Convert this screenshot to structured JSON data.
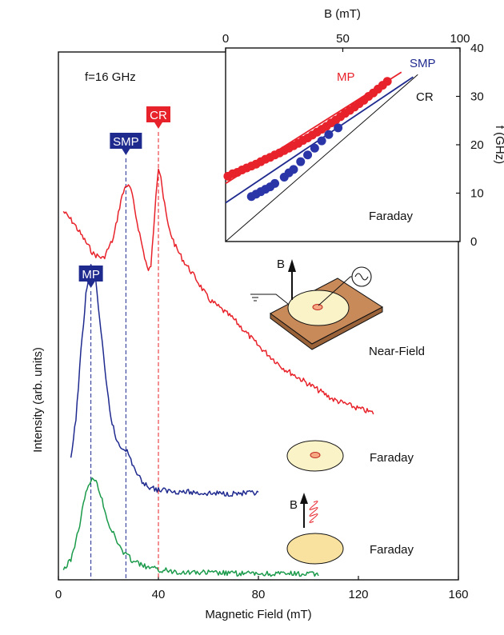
{
  "colors": {
    "red": "#e8222a",
    "blue": "#1f2a8f",
    "green": "#1a9a4a",
    "black": "#111111",
    "dot_red": "#e8222a",
    "dot_blue": "#2a35a8",
    "plate": "#c98a5a",
    "disk": "#fbf3c8"
  },
  "chart_data": [
    {
      "type": "line",
      "annotation_freq": "f=16 GHz",
      "xlabel": "Magnetic Field (mT)",
      "ylabel": "Intensity (arb. units)",
      "xlim": [
        0,
        160
      ],
      "x_ticks": [
        0,
        40,
        80,
        120,
        160
      ],
      "peak_markers": [
        {
          "label": "SMP",
          "field": 27,
          "color": "blue"
        },
        {
          "label": "CR",
          "field": 40,
          "color": "red"
        },
        {
          "label": "MP",
          "field": 13,
          "color": "blue"
        }
      ],
      "series": [
        {
          "name": "Near-Field",
          "color": "red",
          "x": [
            2,
            6,
            10,
            14,
            18,
            22,
            25,
            27,
            29,
            31,
            34,
            36,
            37,
            38,
            39,
            40,
            41,
            42,
            44,
            47,
            50,
            55,
            60,
            70,
            80,
            90,
            100,
            110,
            120,
            126
          ],
          "y": [
            0.52,
            0.47,
            0.4,
            0.33,
            0.31,
            0.4,
            0.57,
            0.64,
            0.62,
            0.5,
            0.34,
            0.25,
            0.28,
            0.42,
            0.6,
            0.72,
            0.68,
            0.58,
            0.45,
            0.36,
            0.3,
            0.22,
            0.13,
            0.04,
            -0.08,
            -0.18,
            -0.25,
            -0.32,
            -0.36,
            -0.38
          ],
          "label_text": "Near-Field"
        },
        {
          "name": "Faraday (ring)",
          "color": "blue",
          "x": [
            5,
            7,
            9,
            11,
            13,
            15,
            17,
            19,
            21,
            23,
            25,
            27,
            29,
            32,
            35,
            40,
            50,
            60,
            70,
            80
          ],
          "y": [
            0.2,
            0.45,
            0.85,
            1.2,
            1.38,
            1.28,
            0.98,
            0.68,
            0.46,
            0.33,
            0.28,
            0.27,
            0.2,
            0.1,
            0.05,
            0.02,
            0.01,
            0.0,
            0.0,
            0.0
          ],
          "label_text": "Faraday"
        },
        {
          "name": "Faraday (disk)",
          "color": "green",
          "x": [
            2,
            5,
            8,
            10,
            12,
            14,
            16,
            18,
            20,
            23,
            26,
            30,
            35,
            40,
            50,
            60,
            70,
            80,
            90,
            104
          ],
          "y": [
            0.03,
            0.1,
            0.3,
            0.48,
            0.62,
            0.66,
            0.6,
            0.48,
            0.35,
            0.24,
            0.15,
            0.09,
            0.05,
            0.03,
            0.015,
            0.01,
            0.005,
            0.003,
            0.002,
            0.0
          ],
          "label_text": "Faraday"
        }
      ],
      "schematic_labels": {
        "B": "B"
      }
    },
    {
      "type": "scatter",
      "xlabel": "B (mT)",
      "ylabel": "f (GHz)",
      "xlim": [
        0,
        100
      ],
      "ylim": [
        0,
        40
      ],
      "x_ticks": [
        0,
        50,
        100
      ],
      "y_ticks": [
        0,
        10,
        20,
        30,
        40
      ],
      "annotation": "Faraday",
      "series": [
        {
          "name": "MP",
          "color": "red",
          "points": [
            [
              1,
              13.5
            ],
            [
              3,
              14
            ],
            [
              5,
              14.3
            ],
            [
              7,
              14.8
            ],
            [
              9,
              15.2
            ],
            [
              11,
              15.6
            ],
            [
              13,
              16
            ],
            [
              15,
              16.5
            ],
            [
              17,
              17
            ],
            [
              19,
              17.4
            ],
            [
              21,
              17.9
            ],
            [
              23,
              18.3
            ],
            [
              25,
              18.8
            ],
            [
              27,
              19.3
            ],
            [
              29,
              19.8
            ],
            [
              31,
              20.3
            ],
            [
              33,
              20.9
            ],
            [
              35,
              21.4
            ],
            [
              37,
              22
            ],
            [
              39,
              22.6
            ],
            [
              41,
              23.2
            ],
            [
              43,
              23.8
            ],
            [
              45,
              24.5
            ],
            [
              47,
              25.1
            ],
            [
              49,
              25.8
            ],
            [
              51,
              26.5
            ],
            [
              53,
              27.1
            ],
            [
              55,
              27.8
            ],
            [
              57,
              28.5
            ],
            [
              59,
              29.2
            ],
            [
              61,
              30
            ],
            [
              63,
              30.7
            ],
            [
              65,
              31.5
            ],
            [
              67,
              32.3
            ],
            [
              69,
              33.1
            ]
          ],
          "fit": [
            [
              0,
              12
            ],
            [
              75,
              35
            ]
          ]
        },
        {
          "name": "SMP",
          "color": "blue",
          "points": [
            [
              11,
              9.3
            ],
            [
              13,
              9.8
            ],
            [
              15,
              10.3
            ],
            [
              17,
              10.8
            ],
            [
              19,
              11.3
            ],
            [
              21,
              12
            ],
            [
              25,
              13.3
            ],
            [
              27,
              14.2
            ],
            [
              29,
              14.9
            ],
            [
              32,
              16.5
            ],
            [
              35,
              17.9
            ],
            [
              38,
              19.3
            ],
            [
              41,
              20.8
            ],
            [
              44,
              22.1
            ],
            [
              48,
              23.5
            ]
          ],
          "fit": [
            [
              0,
              8
            ],
            [
              80,
              34
            ]
          ]
        },
        {
          "name": "CR",
          "color": "black",
          "fit": [
            [
              0,
              0
            ],
            [
              82,
              34.5
            ]
          ]
        }
      ]
    }
  ]
}
